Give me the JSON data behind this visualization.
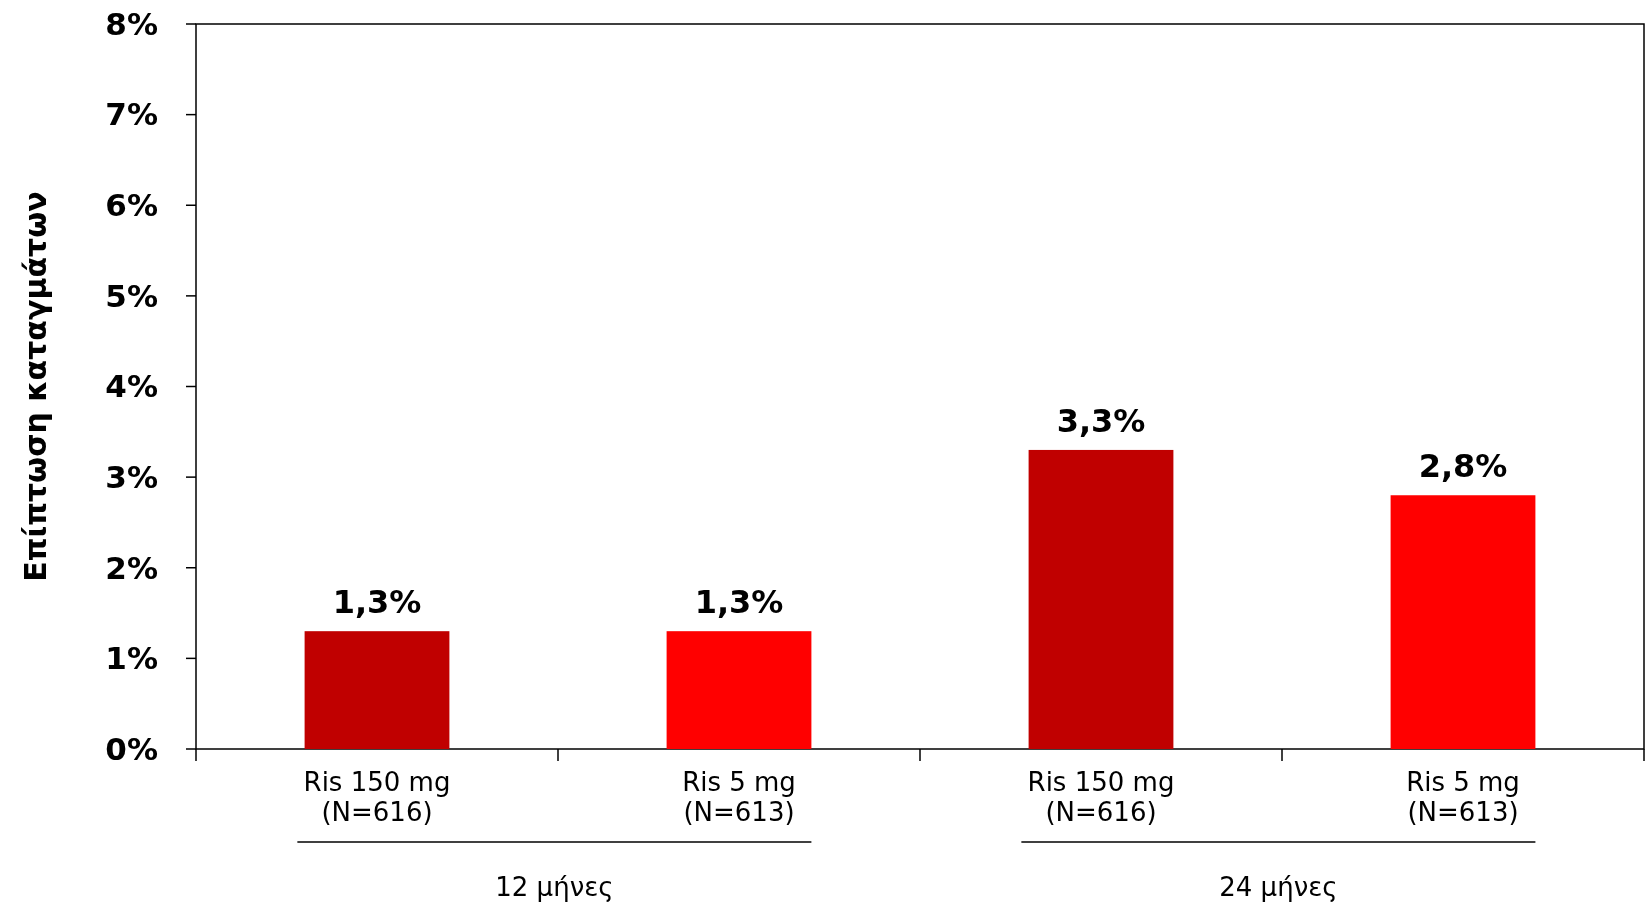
{
  "chart_data": {
    "type": "bar",
    "ylabel": "Επίπτωση καταγμάτων",
    "categories": [
      "Ris 150 mg\n(N=616)",
      "Ris 5 mg\n(N=613)",
      "Ris 150 mg\n(N=616)",
      "Ris 5 mg\n(N=613)"
    ],
    "values": [
      1.3,
      1.3,
      3.3,
      2.8
    ],
    "colors": [
      "#c00000",
      "#ff0000",
      "#c00000",
      "#ff0000"
    ],
    "value_labels": [
      "1,3%",
      "1,3%",
      "3,3%",
      "2,8%"
    ],
    "ylim": [
      0,
      8
    ],
    "yticks": [
      {
        "value": 0,
        "label": "0%"
      },
      {
        "value": 1,
        "label": "1%"
      },
      {
        "value": 2,
        "label": "2%"
      },
      {
        "value": 3,
        "label": "3%"
      },
      {
        "value": 4,
        "label": "4%"
      },
      {
        "value": 5,
        "label": "5%"
      },
      {
        "value": 6,
        "label": "6%"
      },
      {
        "value": 7,
        "label": "7%"
      },
      {
        "value": 8,
        "label": "8%"
      }
    ],
    "annotations": [
      "12 μήνες",
      "24 μήνες"
    ]
  }
}
